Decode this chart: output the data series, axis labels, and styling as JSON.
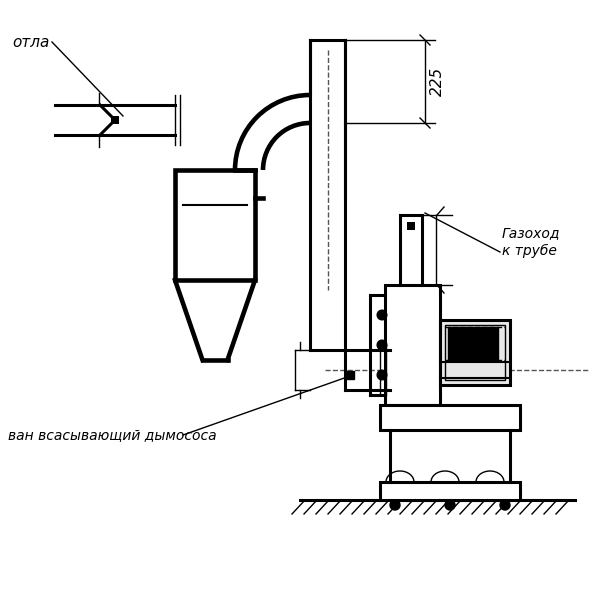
{
  "bg_color": "#ffffff",
  "lw_thick": 2.2,
  "lw_med": 1.5,
  "lw_thin": 1.0,
  "text_kotla": "отла",
  "text_gazokhod1": "Газоход",
  "text_gazokhod2": "к трубе",
  "text_vsan": "ван всасывающий дымососа",
  "text_225": "225",
  "figsize": [
    6.0,
    6.0
  ],
  "dpi": 100
}
